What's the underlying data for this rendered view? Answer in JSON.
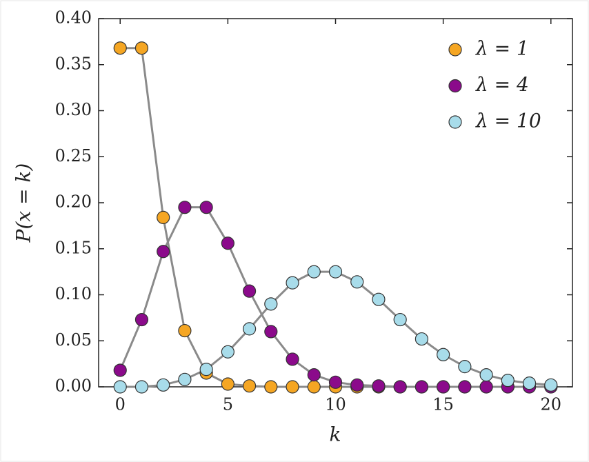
{
  "chart_data": {
    "type": "line",
    "xlabel": "k",
    "ylabel": "P(x = k)",
    "x": [
      0,
      1,
      2,
      3,
      4,
      5,
      6,
      7,
      8,
      9,
      10,
      11,
      12,
      13,
      14,
      15,
      16,
      17,
      18,
      19,
      20
    ],
    "series": [
      {
        "name": "λ = 1",
        "color": "#f5a623",
        "values": [
          0.368,
          0.368,
          0.184,
          0.061,
          0.015,
          0.003,
          0.001,
          0,
          0,
          0,
          0,
          0,
          0,
          0,
          0,
          0,
          0,
          0,
          0,
          0,
          0
        ]
      },
      {
        "name": "λ = 4",
        "color": "#8b0a8b",
        "values": [
          0.018,
          0.073,
          0.147,
          0.195,
          0.195,
          0.156,
          0.104,
          0.06,
          0.03,
          0.013,
          0.005,
          0.002,
          0.001,
          0,
          0,
          0,
          0,
          0,
          0,
          0,
          0
        ]
      },
      {
        "name": "λ = 10",
        "color": "#a8dcea",
        "values": [
          0,
          0,
          0.002,
          0.008,
          0.019,
          0.038,
          0.063,
          0.09,
          0.113,
          0.125,
          0.125,
          0.114,
          0.095,
          0.073,
          0.052,
          0.035,
          0.022,
          0.013,
          0.007,
          0.004,
          0.002
        ]
      }
    ],
    "line_color": "#8a8a8a",
    "xlim": [
      -1,
      21
    ],
    "xticks": [
      0,
      5,
      10,
      15,
      20
    ],
    "ylim": [
      0,
      0.4
    ],
    "yticks": [
      {
        "value": 0,
        "label": "0.00"
      },
      {
        "value": 0.05,
        "label": "0.05"
      },
      {
        "value": 0.1,
        "label": "0.10"
      },
      {
        "value": 0.15,
        "label": "0.15"
      },
      {
        "value": 0.2,
        "label": "0.20"
      },
      {
        "value": 0.25,
        "label": "0.25"
      },
      {
        "value": 0.3,
        "label": "0.30"
      },
      {
        "value": 0.35,
        "label": "0.35"
      },
      {
        "value": 0.4,
        "label": "0.40"
      }
    ],
    "legend": "upper right"
  }
}
